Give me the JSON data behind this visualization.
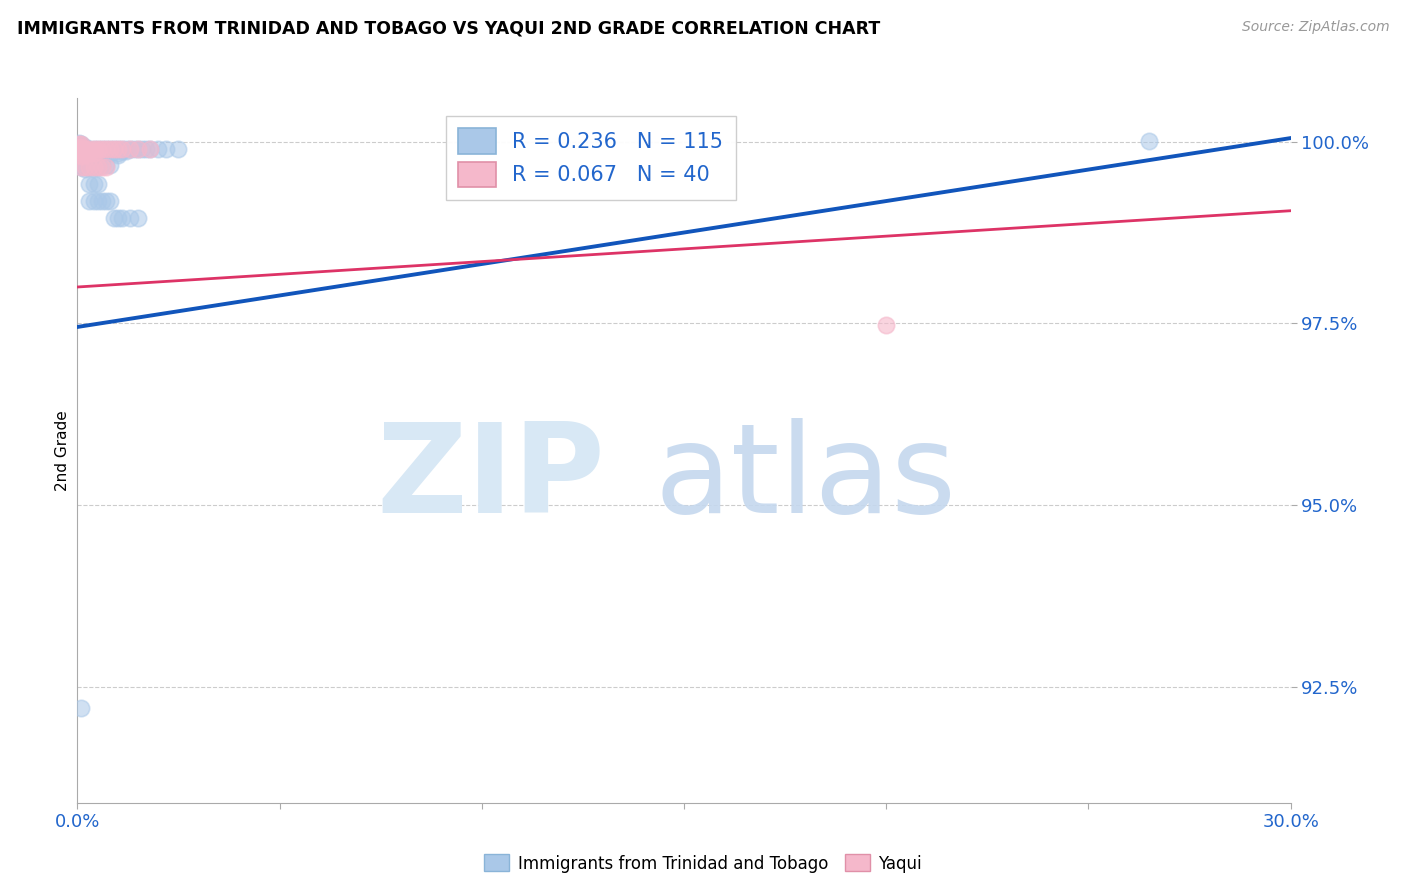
{
  "title": "IMMIGRANTS FROM TRINIDAD AND TOBAGO VS YAQUI 2ND GRADE CORRELATION CHART",
  "source": "Source: ZipAtlas.com",
  "ylabel": "2nd Grade",
  "xlim": [
    0.0,
    0.3
  ],
  "ylim": [
    0.909,
    1.006
  ],
  "ytick_positions": [
    0.925,
    0.95,
    0.975,
    1.0
  ],
  "ytick_labels": [
    "92.5%",
    "95.0%",
    "97.5%",
    "100.0%"
  ],
  "xtick_positions": [
    0.0,
    0.05,
    0.1,
    0.15,
    0.2,
    0.25,
    0.3
  ],
  "xtick_labels": [
    "0.0%",
    "",
    "",
    "",
    "",
    "",
    "30.0%"
  ],
  "blue_color": "#aac8e8",
  "pink_color": "#f5b8cb",
  "blue_line_color": "#1155bb",
  "pink_line_color": "#dd3366",
  "legend_r_blue": "0.236",
  "legend_n_blue": "115",
  "legend_r_pink": "0.067",
  "legend_n_pink": "40",
  "legend_label_blue": "Immigrants from Trinidad and Tobago",
  "legend_label_pink": "Yaqui",
  "blue_trend_x": [
    0.0,
    0.3
  ],
  "blue_trend_y": [
    0.9745,
    1.0005
  ],
  "pink_trend_x": [
    0.0,
    0.3
  ],
  "pink_trend_y": [
    0.98,
    0.9905
  ],
  "blue_x": [
    0.0005,
    0.0005,
    0.0005,
    0.0005,
    0.0008,
    0.0008,
    0.0008,
    0.001,
    0.001,
    0.001,
    0.001,
    0.001,
    0.001,
    0.001,
    0.001,
    0.001,
    0.001,
    0.001,
    0.001,
    0.001,
    0.001,
    0.001,
    0.001,
    0.001,
    0.001,
    0.0015,
    0.0015,
    0.0015,
    0.002,
    0.002,
    0.002,
    0.002,
    0.002,
    0.002,
    0.002,
    0.002,
    0.002,
    0.002,
    0.002,
    0.002,
    0.003,
    0.003,
    0.003,
    0.003,
    0.003,
    0.003,
    0.003,
    0.003,
    0.004,
    0.004,
    0.004,
    0.004,
    0.004,
    0.005,
    0.005,
    0.005,
    0.005,
    0.006,
    0.006,
    0.006,
    0.007,
    0.007,
    0.007,
    0.008,
    0.008,
    0.008,
    0.009,
    0.009,
    0.01,
    0.01,
    0.01,
    0.01,
    0.011,
    0.011,
    0.012,
    0.012,
    0.013,
    0.014,
    0.015,
    0.016,
    0.017,
    0.018,
    0.02,
    0.022,
    0.025,
    0.001,
    0.001,
    0.002,
    0.002,
    0.002,
    0.003,
    0.003,
    0.004,
    0.004,
    0.005,
    0.005,
    0.006,
    0.007,
    0.008,
    0.003,
    0.004,
    0.005,
    0.003,
    0.004,
    0.005,
    0.006,
    0.007,
    0.008,
    0.009,
    0.01,
    0.011,
    0.013,
    0.015,
    0.265,
    0.001
  ],
  "blue_y": [
    0.9998,
    0.9993,
    0.999,
    0.9987,
    0.9993,
    0.999,
    0.9987,
    0.9997,
    0.9995,
    0.9993,
    0.9991,
    0.9989,
    0.9987,
    0.9985,
    0.9983,
    0.999,
    0.9988,
    0.9985,
    0.9982,
    0.998,
    0.9978,
    0.9975,
    0.9972,
    0.997,
    0.9968,
    0.999,
    0.9985,
    0.998,
    0.9993,
    0.9991,
    0.9989,
    0.9987,
    0.9985,
    0.9983,
    0.9981,
    0.9979,
    0.9977,
    0.9975,
    0.9973,
    0.9971,
    0.999,
    0.9988,
    0.9985,
    0.9982,
    0.998,
    0.9978,
    0.9975,
    0.9972,
    0.999,
    0.9987,
    0.9985,
    0.9982,
    0.998,
    0.999,
    0.9987,
    0.9985,
    0.9982,
    0.999,
    0.9987,
    0.9985,
    0.999,
    0.9987,
    0.9985,
    0.999,
    0.9987,
    0.9985,
    0.999,
    0.9987,
    0.999,
    0.9988,
    0.9985,
    0.9982,
    0.999,
    0.9987,
    0.999,
    0.9987,
    0.999,
    0.999,
    0.999,
    0.999,
    0.999,
    0.999,
    0.999,
    0.999,
    0.999,
    0.9968,
    0.9965,
    0.9968,
    0.9965,
    0.9963,
    0.9968,
    0.9965,
    0.9968,
    0.9965,
    0.9968,
    0.9965,
    0.9968,
    0.9968,
    0.9968,
    0.9942,
    0.9942,
    0.9942,
    0.9918,
    0.9918,
    0.9918,
    0.9918,
    0.9918,
    0.9918,
    0.9895,
    0.9895,
    0.9895,
    0.9895,
    0.9895,
    1.0001,
    0.922
  ],
  "pink_x": [
    0.0005,
    0.0005,
    0.0008,
    0.001,
    0.001,
    0.001,
    0.001,
    0.001,
    0.001,
    0.001,
    0.0015,
    0.002,
    0.002,
    0.002,
    0.002,
    0.003,
    0.003,
    0.003,
    0.004,
    0.004,
    0.004,
    0.005,
    0.005,
    0.006,
    0.007,
    0.008,
    0.009,
    0.01,
    0.011,
    0.013,
    0.015,
    0.018,
    0.001,
    0.002,
    0.003,
    0.004,
    0.005,
    0.006,
    0.007,
    0.2
  ],
  "pink_y": [
    0.9997,
    0.9993,
    0.999,
    0.9997,
    0.9993,
    0.999,
    0.9987,
    0.9985,
    0.9982,
    0.998,
    0.999,
    0.999,
    0.9987,
    0.9985,
    0.9982,
    0.999,
    0.9987,
    0.9985,
    0.999,
    0.9987,
    0.9985,
    0.999,
    0.9987,
    0.999,
    0.999,
    0.999,
    0.999,
    0.999,
    0.999,
    0.999,
    0.999,
    0.999,
    0.9965,
    0.9965,
    0.9965,
    0.9965,
    0.9965,
    0.9965,
    0.9965,
    0.9748
  ]
}
